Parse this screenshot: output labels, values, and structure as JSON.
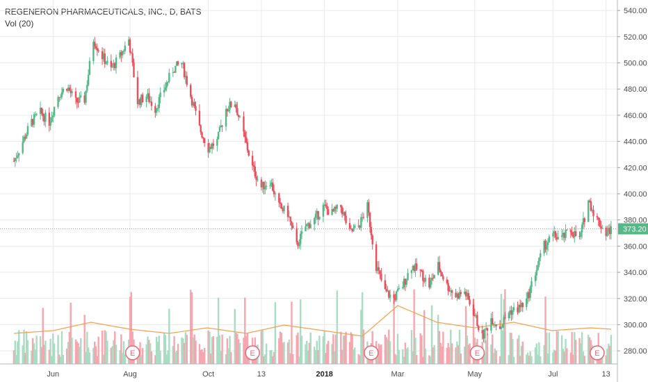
{
  "chart_data": {
    "type": "candlestick",
    "title": "REGENERON PHARMACEUTICALS, INC., D, BATS",
    "volume_label": "Vol (20)",
    "y_ticks": [
      280,
      300,
      320,
      340,
      360,
      380,
      400,
      420,
      440,
      460,
      480,
      500,
      520,
      540
    ],
    "y_range": [
      270,
      548
    ],
    "x_labels": [
      {
        "label": "Jun",
        "date": "2017-06-01"
      },
      {
        "label": "Aug",
        "date": "2017-08-01"
      },
      {
        "label": "Oct",
        "date": "2017-10-02"
      },
      {
        "label": "13",
        "date": "2017-11-13"
      },
      {
        "label": "2018",
        "date": "2018-01-02"
      },
      {
        "label": "Mar",
        "date": "2018-03-01"
      },
      {
        "label": "May",
        "date": "2018-05-01"
      },
      {
        "label": "Jul",
        "date": "2018-07-02"
      },
      {
        "label": "13",
        "date": "2018-08-13"
      }
    ],
    "last_price": "373.20",
    "last_price_value": 373.2,
    "earnings_markers": [
      {
        "label": "E",
        "date": "2017-08-03"
      },
      {
        "label": "E",
        "date": "2017-11-06"
      },
      {
        "label": "E",
        "date": "2018-02-08"
      },
      {
        "label": "E",
        "date": "2018-05-03"
      },
      {
        "label": "E",
        "date": "2018-08-06"
      }
    ],
    "price_path": [
      [
        "2017-05-01",
        425
      ],
      [
        "2017-05-08",
        440
      ],
      [
        "2017-05-15",
        455
      ],
      [
        "2017-05-22",
        462
      ],
      [
        "2017-05-29",
        455
      ],
      [
        "2017-06-05",
        475
      ],
      [
        "2017-06-12",
        482
      ],
      [
        "2017-06-19",
        470
      ],
      [
        "2017-06-26",
        472
      ],
      [
        "2017-07-03",
        518
      ],
      [
        "2017-07-10",
        505
      ],
      [
        "2017-07-17",
        495
      ],
      [
        "2017-07-24",
        505
      ],
      [
        "2017-07-31",
        518
      ],
      [
        "2017-08-07",
        470
      ],
      [
        "2017-08-14",
        475
      ],
      [
        "2017-08-21",
        465
      ],
      [
        "2017-08-28",
        480
      ],
      [
        "2017-09-04",
        495
      ],
      [
        "2017-09-11",
        500
      ],
      [
        "2017-09-18",
        475
      ],
      [
        "2017-09-25",
        450
      ],
      [
        "2017-10-02",
        435
      ],
      [
        "2017-10-09",
        440
      ],
      [
        "2017-10-16",
        465
      ],
      [
        "2017-10-23",
        470
      ],
      [
        "2017-10-30",
        445
      ],
      [
        "2017-11-06",
        420
      ],
      [
        "2017-11-13",
        405
      ],
      [
        "2017-11-20",
        410
      ],
      [
        "2017-11-27",
        390
      ],
      [
        "2017-12-04",
        385
      ],
      [
        "2017-12-11",
        360
      ],
      [
        "2017-12-18",
        375
      ],
      [
        "2017-12-25",
        380
      ],
      [
        "2018-01-01",
        390
      ],
      [
        "2018-01-08",
        385
      ],
      [
        "2018-01-15",
        390
      ],
      [
        "2018-01-22",
        370
      ],
      [
        "2018-01-29",
        375
      ],
      [
        "2018-02-05",
        390
      ],
      [
        "2018-02-12",
        345
      ],
      [
        "2018-02-19",
        325
      ],
      [
        "2018-02-26",
        320
      ],
      [
        "2018-03-05",
        330
      ],
      [
        "2018-03-12",
        345
      ],
      [
        "2018-03-19",
        340
      ],
      [
        "2018-03-26",
        330
      ],
      [
        "2018-04-02",
        345
      ],
      [
        "2018-04-09",
        330
      ],
      [
        "2018-04-16",
        322
      ],
      [
        "2018-04-23",
        325
      ],
      [
        "2018-04-30",
        310
      ],
      [
        "2018-05-07",
        290
      ],
      [
        "2018-05-14",
        305
      ],
      [
        "2018-05-21",
        298
      ],
      [
        "2018-05-28",
        310
      ],
      [
        "2018-06-04",
        312
      ],
      [
        "2018-06-11",
        318
      ],
      [
        "2018-06-18",
        340
      ],
      [
        "2018-06-25",
        360
      ],
      [
        "2018-07-02",
        368
      ],
      [
        "2018-07-09",
        366
      ],
      [
        "2018-07-16",
        372
      ],
      [
        "2018-07-23",
        365
      ],
      [
        "2018-07-30",
        395
      ],
      [
        "2018-08-06",
        380
      ],
      [
        "2018-08-13",
        370
      ],
      [
        "2018-08-17",
        373
      ]
    ],
    "volume_ma_path": [
      [
        "2017-05-01",
        0.22
      ],
      [
        "2017-06-01",
        0.24
      ],
      [
        "2017-07-01",
        0.3
      ],
      [
        "2017-08-01",
        0.25
      ],
      [
        "2017-09-01",
        0.22
      ],
      [
        "2017-10-01",
        0.26
      ],
      [
        "2017-11-01",
        0.22
      ],
      [
        "2017-12-01",
        0.28
      ],
      [
        "2018-01-01",
        0.24
      ],
      [
        "2018-02-01",
        0.2
      ],
      [
        "2018-03-01",
        0.42
      ],
      [
        "2018-04-01",
        0.3
      ],
      [
        "2018-05-01",
        0.26
      ],
      [
        "2018-06-01",
        0.3
      ],
      [
        "2018-07-01",
        0.24
      ],
      [
        "2018-08-01",
        0.26
      ],
      [
        "2018-08-17",
        0.25
      ]
    ],
    "colors": {
      "up": "#53b987",
      "down": "#eb4d5c",
      "vol_up": "#a9dcc3",
      "vol_down": "#f5a6ae",
      "ma": "#f6a04d",
      "grid": "#e9e9ea",
      "axis_text": "#4a4a4a",
      "price_tag": "#53b987",
      "earnings": "#e06a75"
    }
  }
}
